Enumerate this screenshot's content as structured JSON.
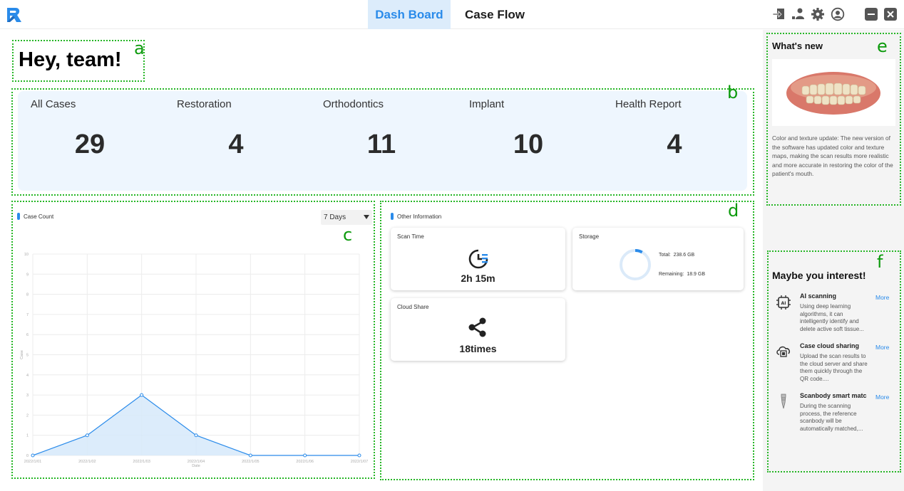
{
  "nav": {
    "tabs": [
      {
        "label": "Dash Board",
        "active": true
      },
      {
        "label": "Case Flow",
        "active": false
      }
    ],
    "accent_color": "#2a8bea"
  },
  "toolbar": {
    "icons": [
      "import-icon",
      "users-icon",
      "gear-icon",
      "profile-icon",
      "minimize-icon",
      "close-icon"
    ]
  },
  "greeting": "Hey, team!",
  "region_tags": [
    "a",
    "b",
    "c",
    "d",
    "e",
    "f"
  ],
  "stats": [
    {
      "label": "All Cases",
      "value": "29"
    },
    {
      "label": "Restoration",
      "value": "4"
    },
    {
      "label": "Orthodontics",
      "value": "11"
    },
    {
      "label": "Implant",
      "value": "10"
    },
    {
      "label": "Health Report",
      "value": "4"
    }
  ],
  "case_count": {
    "title": "Case Count",
    "range_selected": "7 Days"
  },
  "chart_data": {
    "type": "area",
    "title": "Case Count",
    "x": [
      "2022/1/01",
      "2022/1/02",
      "2022/1/03",
      "2022/1/04",
      "2022/1/05",
      "2022/1/06",
      "2022/1/07"
    ],
    "values": [
      0,
      1,
      3,
      1,
      0,
      0,
      0
    ],
    "xlabel": "Date",
    "ylabel": "Case",
    "ylim": [
      0,
      10
    ],
    "yticks": [
      "0",
      "1",
      "2",
      "3",
      "4",
      "5",
      "6",
      "7",
      "8",
      "9",
      "10"
    ],
    "grid": true,
    "line_color": "#2a8bea",
    "fill_color": "#d6e9fa"
  },
  "other_info": {
    "title": "Other Information",
    "scan_time": {
      "title": "Scan Time",
      "value": "2h 15m"
    },
    "storage": {
      "title": "Storage",
      "total_label": "Total:",
      "total": "238.6 GB",
      "remaining_label": "Remaining:",
      "remaining": "18.9 GB",
      "used_fraction": 0.92
    },
    "cloud_share": {
      "title": "Cloud Share",
      "value": "18times"
    }
  },
  "whats_new": {
    "title": "What's new",
    "image_icon": "dental-scan-icon",
    "text": "Color and texture update: The new version of the software has updated color and texture maps, making the scan results more realistic and more accurate in restoring the color of the patient's mouth."
  },
  "interest": {
    "title": "Maybe you interest!",
    "more_label": "More",
    "items": [
      {
        "icon": "ai-chip-icon",
        "name": "AI scanning",
        "desc": "Using deep learning algorithms, it can intelligently identify and delete active soft tissue..."
      },
      {
        "icon": "cloud-share-icon",
        "name": "Case cloud sharing",
        "desc": "Upload the scan results to the cloud server and share them quickly through the QR code...."
      },
      {
        "icon": "scanbody-icon",
        "name": "Scanbody smart matc",
        "desc": "During the scanning process, the reference scanbody will be automatically matched,..."
      }
    ]
  }
}
